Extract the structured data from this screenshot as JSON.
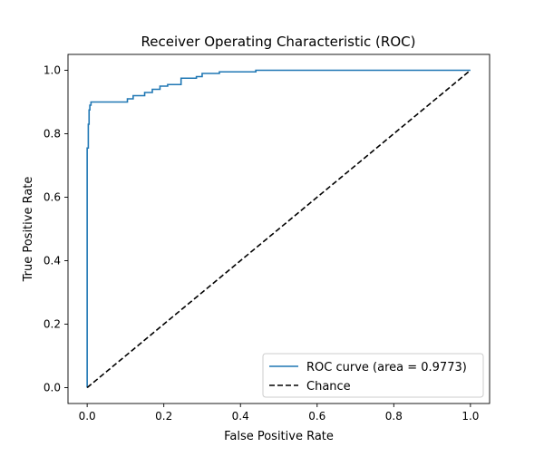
{
  "chart_data": {
    "type": "line",
    "title": "Receiver Operating Characteristic (ROC)",
    "xlabel": "False Positive Rate",
    "ylabel": "True Positive Rate",
    "xlim": [
      -0.05,
      1.05
    ],
    "ylim": [
      -0.05,
      1.05
    ],
    "xticks": [
      0.0,
      0.2,
      0.4,
      0.6,
      0.8,
      1.0
    ],
    "xtick_labels": [
      "0.0",
      "0.2",
      "0.4",
      "0.6",
      "0.8",
      "1.0"
    ],
    "yticks": [
      0.0,
      0.2,
      0.4,
      0.6,
      0.8,
      1.0
    ],
    "ytick_labels": [
      "0.0",
      "0.2",
      "0.4",
      "0.6",
      "0.8",
      "1.0"
    ],
    "grid": false,
    "legend_position": "lower-right",
    "series": [
      {
        "name": "ROC curve (area = 0.9773)",
        "color": "#1f77b4",
        "style": "solid",
        "step": true,
        "x": [
          0.0,
          0.0,
          0.003,
          0.003,
          0.005,
          0.005,
          0.007,
          0.007,
          0.01,
          0.01,
          0.105,
          0.105,
          0.12,
          0.12,
          0.15,
          0.15,
          0.17,
          0.17,
          0.19,
          0.19,
          0.21,
          0.21,
          0.245,
          0.245,
          0.285,
          0.285,
          0.3,
          0.3,
          0.345,
          0.345,
          0.44,
          0.44,
          1.0
        ],
        "y": [
          0.0,
          0.755,
          0.755,
          0.83,
          0.83,
          0.875,
          0.875,
          0.89,
          0.89,
          0.9,
          0.9,
          0.91,
          0.91,
          0.92,
          0.92,
          0.93,
          0.93,
          0.94,
          0.94,
          0.95,
          0.95,
          0.955,
          0.955,
          0.975,
          0.975,
          0.98,
          0.98,
          0.99,
          0.99,
          0.995,
          0.995,
          1.0,
          1.0
        ]
      },
      {
        "name": "Chance",
        "color": "#000000",
        "style": "dashed",
        "step": false,
        "x": [
          0.0,
          1.0
        ],
        "y": [
          0.0,
          1.0
        ]
      }
    ]
  }
}
